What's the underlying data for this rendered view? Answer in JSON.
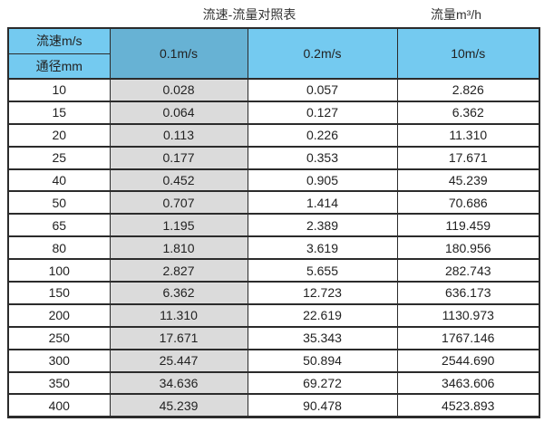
{
  "page": {
    "title": "流速-流量对照表",
    "unit_label": "流量m³/h"
  },
  "colors": {
    "header_blue": "#74CAF0",
    "header_blue_dark": "#67B2D4",
    "col_gray": "#DBDBDB",
    "border_color": "#2B2B2B",
    "text_color": "#222222"
  },
  "table": {
    "corner": {
      "top": "流速m/s",
      "bottom": "通径mm"
    },
    "velocity_headers": [
      "0.1m/s",
      "0.2m/s",
      "10m/s"
    ],
    "rows": [
      [
        "10",
        "0.028",
        "0.057",
        "2.826"
      ],
      [
        "15",
        "0.064",
        "0.127",
        "6.362"
      ],
      [
        "20",
        "0.113",
        "0.226",
        "11.310"
      ],
      [
        "25",
        "0.177",
        "0.353",
        "17.671"
      ],
      [
        "40",
        "0.452",
        "0.905",
        "45.239"
      ],
      [
        "50",
        "0.707",
        "1.414",
        "70.686"
      ],
      [
        "65",
        "1.195",
        "2.389",
        "119.459"
      ],
      [
        "80",
        "1.810",
        "3.619",
        "180.956"
      ],
      [
        "100",
        "2.827",
        "5.655",
        "282.743"
      ],
      [
        "150",
        "6.362",
        "12.723",
        "636.173"
      ],
      [
        "200",
        "11.310",
        "22.619",
        "1130.973"
      ],
      [
        "250",
        "17.671",
        "35.343",
        "1767.146"
      ],
      [
        "300",
        "25.447",
        "50.894",
        "2544.690"
      ],
      [
        "350",
        "34.636",
        "69.272",
        "3463.606"
      ],
      [
        "400",
        "45.239",
        "90.478",
        "4523.893"
      ]
    ]
  }
}
